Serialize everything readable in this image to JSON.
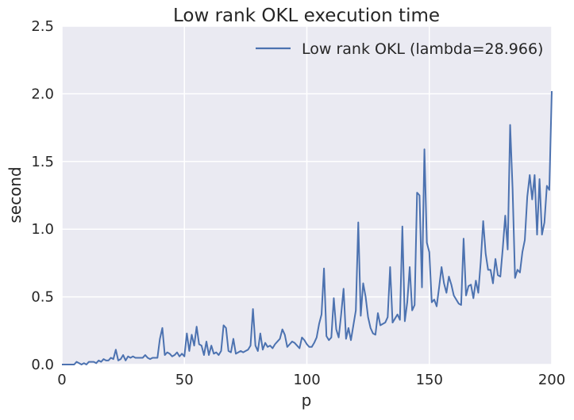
{
  "chart_data": {
    "type": "line",
    "title": "Low rank OKL execution time",
    "xlabel": "p",
    "ylabel": "second",
    "xlim": [
      0,
      200
    ],
    "ylim": [
      0,
      2.5
    ],
    "xticks": [
      "0",
      "50",
      "100",
      "150",
      "200"
    ],
    "yticks": [
      "0.0",
      "0.5",
      "1.0",
      "1.5",
      "2.0",
      "2.5"
    ],
    "grid": true,
    "legend_position": "top-right",
    "series": [
      {
        "name": "Low rank OKL (lambda=28.966)",
        "color": "#4c72b0",
        "x": [
          0,
          1,
          2,
          3,
          4,
          5,
          6,
          7,
          8,
          9,
          10,
          11,
          12,
          13,
          14,
          15,
          16,
          17,
          18,
          19,
          20,
          21,
          22,
          23,
          24,
          25,
          26,
          27,
          28,
          29,
          30,
          31,
          32,
          33,
          34,
          35,
          36,
          37,
          38,
          39,
          40,
          41,
          42,
          43,
          44,
          45,
          46,
          47,
          48,
          49,
          50,
          51,
          52,
          53,
          54,
          55,
          56,
          57,
          58,
          59,
          60,
          61,
          62,
          63,
          64,
          65,
          66,
          67,
          68,
          69,
          70,
          71,
          72,
          73,
          74,
          75,
          76,
          77,
          78,
          79,
          80,
          81,
          82,
          83,
          84,
          85,
          86,
          87,
          88,
          89,
          90,
          91,
          92,
          93,
          94,
          95,
          96,
          97,
          98,
          99,
          100,
          101,
          102,
          103,
          104,
          105,
          106,
          107,
          108,
          109,
          110,
          111,
          112,
          113,
          114,
          115,
          116,
          117,
          118,
          119,
          120,
          121,
          122,
          123,
          124,
          125,
          126,
          127,
          128,
          129,
          130,
          131,
          132,
          133,
          134,
          135,
          136,
          137,
          138,
          139,
          140,
          141,
          142,
          143,
          144,
          145,
          146,
          147,
          148,
          149,
          150,
          151,
          152,
          153,
          154,
          155,
          156,
          157,
          158,
          159,
          160,
          161,
          162,
          163,
          164,
          165,
          166,
          167,
          168,
          169,
          170,
          171,
          172,
          173,
          174,
          175,
          176,
          177,
          178,
          179,
          180,
          181,
          182,
          183,
          184,
          185,
          186,
          187,
          188,
          189,
          190,
          191,
          192,
          193,
          194,
          195,
          196,
          197,
          198,
          199,
          200
        ],
        "y": [
          0.0,
          0.0,
          0.0,
          0.0,
          0.0,
          0.0,
          0.02,
          0.01,
          0.0,
          0.01,
          0.0,
          0.02,
          0.02,
          0.02,
          0.01,
          0.03,
          0.02,
          0.04,
          0.03,
          0.03,
          0.05,
          0.04,
          0.11,
          0.03,
          0.04,
          0.07,
          0.03,
          0.06,
          0.05,
          0.06,
          0.05,
          0.05,
          0.05,
          0.05,
          0.07,
          0.05,
          0.04,
          0.05,
          0.05,
          0.05,
          0.19,
          0.27,
          0.07,
          0.09,
          0.08,
          0.06,
          0.07,
          0.09,
          0.06,
          0.08,
          0.06,
          0.23,
          0.1,
          0.22,
          0.14,
          0.28,
          0.15,
          0.14,
          0.07,
          0.17,
          0.07,
          0.14,
          0.08,
          0.09,
          0.07,
          0.1,
          0.29,
          0.27,
          0.1,
          0.09,
          0.19,
          0.08,
          0.09,
          0.1,
          0.09,
          0.1,
          0.11,
          0.14,
          0.41,
          0.14,
          0.1,
          0.23,
          0.11,
          0.16,
          0.13,
          0.14,
          0.12,
          0.15,
          0.17,
          0.19,
          0.26,
          0.22,
          0.13,
          0.15,
          0.17,
          0.16,
          0.14,
          0.12,
          0.2,
          0.18,
          0.15,
          0.13,
          0.13,
          0.16,
          0.2,
          0.3,
          0.37,
          0.71,
          0.21,
          0.18,
          0.2,
          0.49,
          0.26,
          0.2,
          0.37,
          0.56,
          0.19,
          0.27,
          0.18,
          0.29,
          0.4,
          1.05,
          0.36,
          0.6,
          0.5,
          0.35,
          0.27,
          0.23,
          0.22,
          0.38,
          0.29,
          0.3,
          0.31,
          0.35,
          0.72,
          0.31,
          0.34,
          0.37,
          0.33,
          1.02,
          0.32,
          0.46,
          0.72,
          0.4,
          0.44,
          1.27,
          1.25,
          0.57,
          1.59,
          0.9,
          0.83,
          0.46,
          0.48,
          0.43,
          0.57,
          0.72,
          0.6,
          0.53,
          0.65,
          0.59,
          0.51,
          0.48,
          0.45,
          0.44,
          0.93,
          0.51,
          0.58,
          0.59,
          0.49,
          0.62,
          0.53,
          0.76,
          1.06,
          0.82,
          0.7,
          0.7,
          0.6,
          0.78,
          0.66,
          0.65,
          0.86,
          1.1,
          0.85,
          1.77,
          1.3,
          0.64,
          0.7,
          0.68,
          0.83,
          0.92,
          1.24,
          1.4,
          1.22,
          1.4,
          0.96,
          1.37,
          0.96,
          1.05,
          1.32,
          1.29,
          2.02
        ]
      }
    ]
  }
}
